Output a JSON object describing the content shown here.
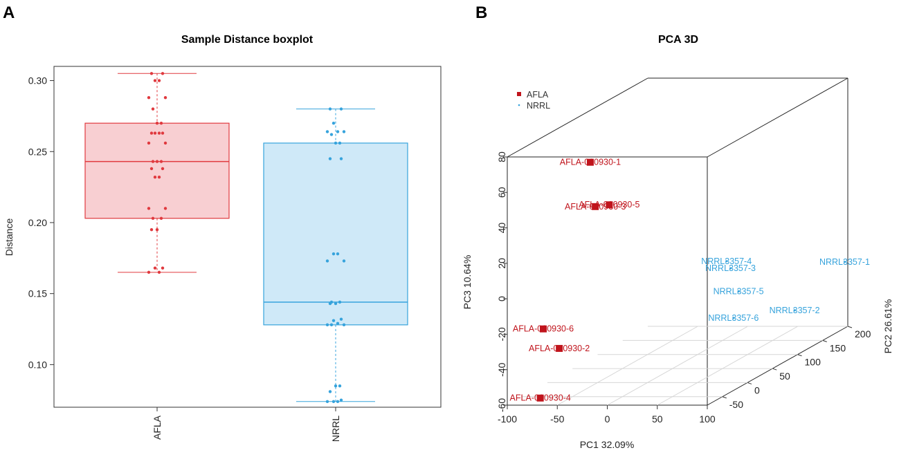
{
  "panels": {
    "a_letter": "A",
    "b_letter": "B"
  },
  "chart_data": [
    {
      "type": "boxplot",
      "title": "Sample Distance boxplot",
      "xlabel": "",
      "ylabel": "Distance",
      "ylim": [
        0.07,
        0.31
      ],
      "yticks": [
        0.1,
        0.15,
        0.2,
        0.25,
        0.3
      ],
      "ytick_labels": [
        "0.10",
        "0.15",
        "0.20",
        "0.25",
        "0.30"
      ],
      "categories": [
        "AFLA",
        "NRRL"
      ],
      "boxes": [
        {
          "name": "AFLA",
          "color": "#e0393e",
          "fill": "#f8cfd2",
          "min": 0.165,
          "q1": 0.203,
          "median": 0.243,
          "q3": 0.27,
          "max": 0.305,
          "points": [
            0.305,
            0.305,
            0.3,
            0.3,
            0.288,
            0.288,
            0.28,
            0.27,
            0.27,
            0.263,
            0.263,
            0.263,
            0.263,
            0.256,
            0.256,
            0.243,
            0.243,
            0.243,
            0.238,
            0.238,
            0.232,
            0.232,
            0.21,
            0.21,
            0.203,
            0.203,
            0.195,
            0.195,
            0.168,
            0.168,
            0.165,
            0.165
          ]
        },
        {
          "name": "NRRL",
          "color": "#36a3dc",
          "fill": "#cfe9f8",
          "min": 0.074,
          "q1": 0.128,
          "median": 0.144,
          "q3": 0.256,
          "max": 0.28,
          "points": [
            0.28,
            0.28,
            0.27,
            0.264,
            0.264,
            0.264,
            0.262,
            0.256,
            0.256,
            0.245,
            0.245,
            0.178,
            0.178,
            0.173,
            0.173,
            0.144,
            0.144,
            0.143,
            0.143,
            0.132,
            0.131,
            0.129,
            0.128,
            0.128,
            0.128,
            0.085,
            0.085,
            0.081,
            0.075,
            0.074,
            0.074,
            0.074
          ]
        }
      ]
    },
    {
      "type": "scatter3d",
      "title": "PCA 3D",
      "xlabel": "PC1 32.09%",
      "ylabel": "PC2 26.61%",
      "zlabel": "PC3 10.64%",
      "xlim": [
        -100,
        100
      ],
      "ylim": [
        -80,
        200
      ],
      "zlim": [
        -60,
        80
      ],
      "xticks": [
        -100,
        -50,
        0,
        50,
        100
      ],
      "xtick_labels": [
        "-100",
        "-50",
        "0",
        "50",
        "100"
      ],
      "yticks": [
        -50,
        0,
        50,
        100,
        150,
        200
      ],
      "ytick_labels": [
        "-50",
        "0",
        "50",
        "100",
        "150",
        "200"
      ],
      "zticks": [
        -60,
        -40,
        -20,
        0,
        20,
        40,
        60,
        80
      ],
      "ztick_labels": [
        "-60",
        "-40",
        "-20",
        "0",
        "20",
        "40",
        "60",
        "80"
      ],
      "legend": [
        {
          "name": "AFLA",
          "color": "#c0141c"
        },
        {
          "name": "NRRL",
          "color": "#36a3dc"
        }
      ],
      "legend_position": "top-left",
      "points": [
        {
          "label": "AFLA-000930-1",
          "group": "AFLA",
          "x": -17,
          "y": -80,
          "z": 77
        },
        {
          "label": "AFLA-000930-3",
          "group": "AFLA",
          "x": -12,
          "y": -80,
          "z": 52
        },
        {
          "label": "AFLA-000930-5",
          "group": "AFLA",
          "x": 2,
          "y": -80,
          "z": 53
        },
        {
          "label": "AFLA-000930-6",
          "group": "AFLA",
          "x": -64,
          "y": -80,
          "z": -17
        },
        {
          "label": "AFLA-000930-2",
          "group": "AFLA",
          "x": -48,
          "y": -80,
          "z": -28
        },
        {
          "label": "AFLA-000930-4",
          "group": "AFLA",
          "x": -67,
          "y": -80,
          "z": -56
        },
        {
          "label": "NRRL3357-4",
          "group": "NRRL",
          "x": 68,
          "y": 22,
          "z": 5
        },
        {
          "label": "NRRL3357-3",
          "group": "NRRL",
          "x": 72,
          "y": 22,
          "z": 1
        },
        {
          "label": "NRRL3357-5",
          "group": "NRRL",
          "x": 80,
          "y": 22,
          "z": -12
        },
        {
          "label": "NRRL3357-6",
          "group": "NRRL",
          "x": 75,
          "y": 22,
          "z": -27
        },
        {
          "label": "NRRL3357-2",
          "group": "NRRL",
          "x": 113,
          "y": 68,
          "z": -30
        },
        {
          "label": "NRRL3357-1",
          "group": "NRRL",
          "x": 140,
          "y": 114,
          "z": -10
        }
      ]
    }
  ]
}
